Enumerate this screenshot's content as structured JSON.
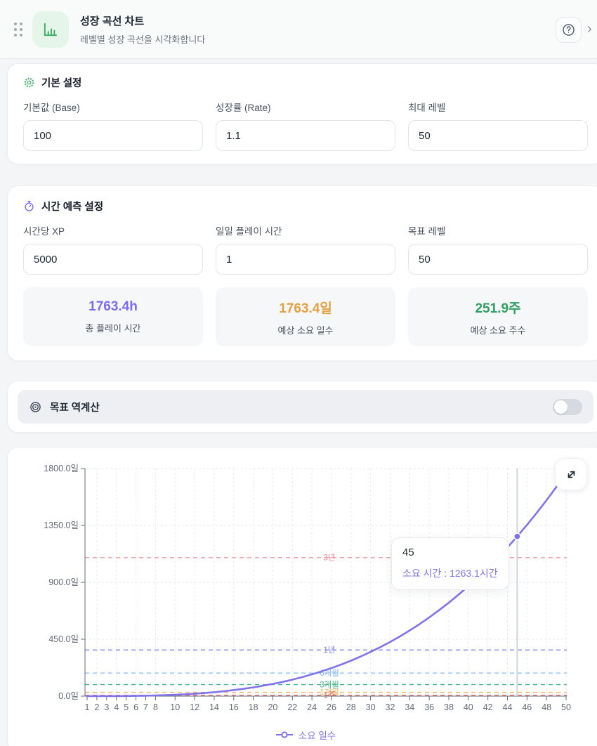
{
  "header": {
    "title": "성장 곡선 차트",
    "subtitle": "레벨별 성장 곡선을 시각화합니다"
  },
  "basic": {
    "title": "기본 설정",
    "fields": [
      {
        "label": "기본값 (Base)",
        "value": "100"
      },
      {
        "label": "성장률 (Rate)",
        "value": "1.1"
      },
      {
        "label": "최대 레벨",
        "value": "50"
      }
    ]
  },
  "time": {
    "title": "시간 예측 설정",
    "fields": [
      {
        "label": "시간당 XP",
        "value": "5000"
      },
      {
        "label": "일일 플레이 시간",
        "value": "1"
      },
      {
        "label": "목표 레벨",
        "value": "50"
      }
    ],
    "stats": [
      {
        "value": "1763.4h",
        "label": "총 플레이 시간",
        "color": "#7c6cec"
      },
      {
        "value": "1763.4일",
        "label": "예상 소요 일수",
        "color": "#e3a23f"
      },
      {
        "value": "251.9주",
        "label": "예상 소요 주수",
        "color": "#2ea05f"
      }
    ]
  },
  "reverse_calc": {
    "title": "목표 역계산",
    "enabled": false
  },
  "chart_data": {
    "type": "line",
    "series_name": "소요 일수",
    "line_color": "#8173ea",
    "xlabel": "",
    "ylabel": "",
    "x_min": 1,
    "x_max": 50,
    "y_min": 0,
    "y_max": 1800,
    "y_tick_labels": [
      "0.0일",
      "450.0일",
      "900.0일",
      "1350.0일",
      "1800.0일"
    ],
    "y_tick_values": [
      0,
      450,
      900,
      1350,
      1800
    ],
    "x_tick_labels": [
      1,
      2,
      3,
      4,
      5,
      6,
      7,
      8,
      10,
      12,
      14,
      16,
      18,
      20,
      22,
      24,
      26,
      28,
      30,
      32,
      34,
      36,
      38,
      40,
      42,
      44,
      46,
      48,
      50
    ],
    "x": [
      1,
      2,
      3,
      4,
      5,
      6,
      7,
      8,
      9,
      10,
      11,
      12,
      13,
      14,
      15,
      16,
      17,
      18,
      19,
      20,
      21,
      22,
      23,
      24,
      25,
      26,
      27,
      28,
      29,
      30,
      31,
      32,
      33,
      34,
      35,
      36,
      37,
      38,
      39,
      40,
      41,
      42,
      43,
      44,
      45,
      46,
      47,
      48,
      49,
      50
    ],
    "values": [
      0.0,
      0.1,
      0.2,
      0.6,
      1.2,
      2.1,
      3.5,
      5.3,
      7.7,
      10.7,
      14.5,
      19.1,
      24.6,
      31.2,
      38.8,
      47.6,
      57.7,
      69.1,
      82.0,
      96.6,
      112.5,
      130.5,
      150.2,
      172.3,
      195.9,
      222.0,
      250.2,
      280.6,
      313.7,
      349.2,
      387.6,
      428.5,
      472.4,
      519.2,
      569.1,
      622.7,
      679.3,
      738.9,
      802.7,
      869.4,
      940.1,
      1015.4,
      1093.5,
      1176.2,
      1263.1,
      1354.3,
      1449.6,
      1550.0,
      1654.1,
      1763.4
    ],
    "reference_lines": [
      {
        "label": "3년",
        "days": 1095,
        "color": "#f08a93"
      },
      {
        "label": "1년",
        "days": 365,
        "color": "#7b83ee"
      },
      {
        "label": "6개월",
        "days": 182.5,
        "color": "#85b8f5"
      },
      {
        "label": "3개월",
        "days": 91.2,
        "color": "#46b98c"
      },
      {
        "label": "1개월",
        "days": 30.4,
        "color": "#eeb25e"
      },
      {
        "label": "1주",
        "days": 7,
        "color": "#e06a6a"
      }
    ],
    "active_point": {
      "level": 45,
      "days": 1263.1
    },
    "tooltip": {
      "title": "45",
      "text": "소요 시간 : 1263.1시간"
    },
    "legend_position": "bottom",
    "grid": true
  }
}
